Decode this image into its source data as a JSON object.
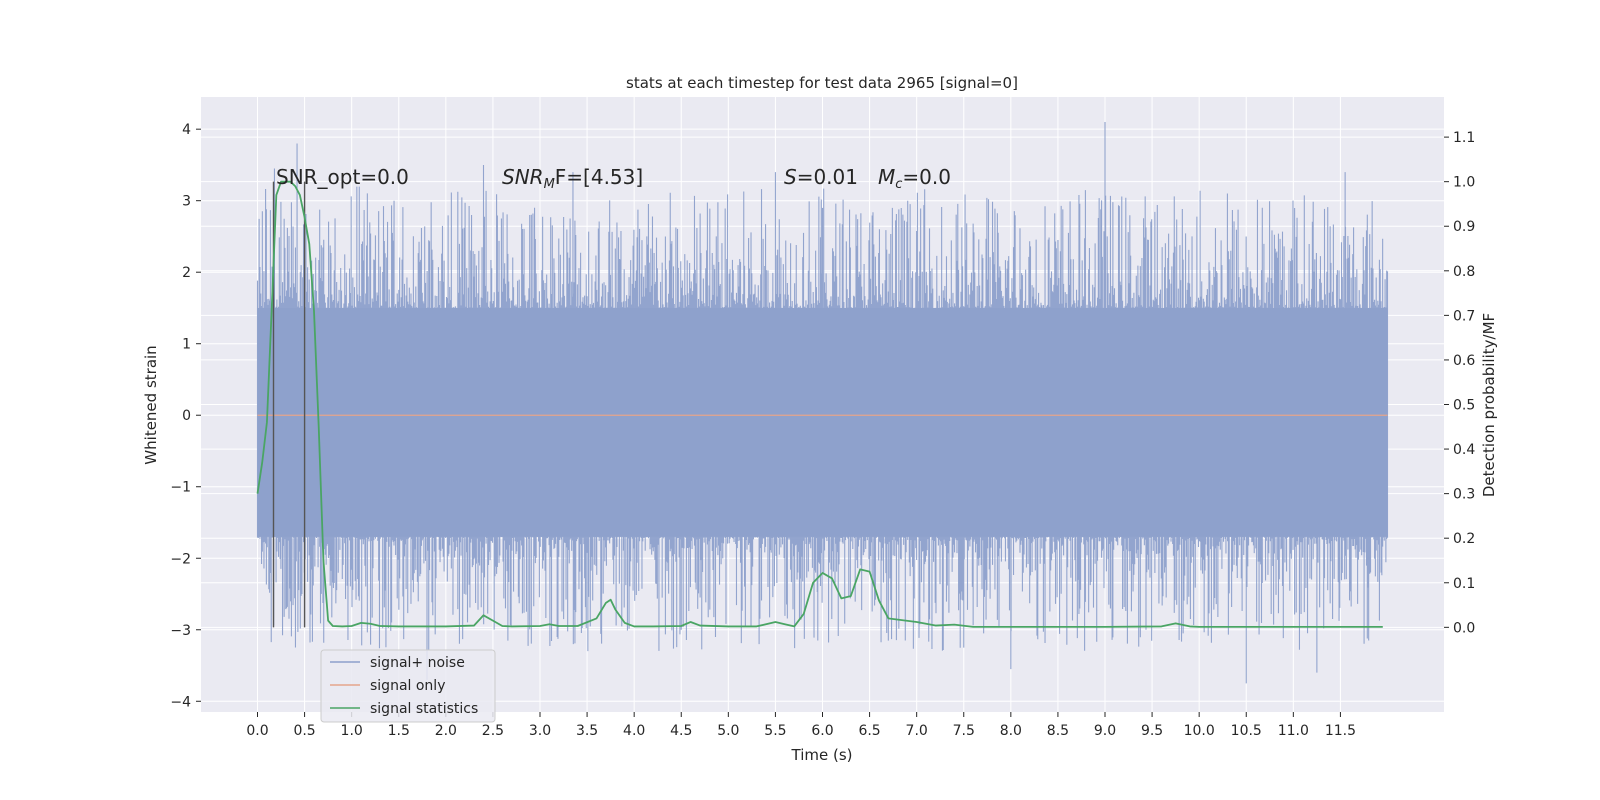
{
  "chart_data": {
    "type": "line",
    "title": "stats at each timestep for test data 2965 [signal=0]",
    "xlabel": "Time (s)",
    "ylabel_left": "Whitened strain",
    "ylabel_right": "Detection probability/MF",
    "xlim": [
      -0.6,
      12.6
    ],
    "ylim_left": [
      -4.15,
      4.45
    ],
    "ylim_right": [
      -0.19,
      1.19
    ],
    "x_ticks": [
      "0.0",
      "0.5",
      "1.0",
      "1.5",
      "2.0",
      "2.5",
      "3.0",
      "3.5",
      "4.0",
      "4.5",
      "5.0",
      "5.5",
      "6.0",
      "6.5",
      "7.0",
      "7.5",
      "8.0",
      "8.5",
      "9.0",
      "9.5",
      "10.0",
      "10.5",
      "11.0",
      "11.5"
    ],
    "y_ticks_left": [
      "4",
      "3",
      "2",
      "1",
      "0",
      "−1",
      "−2",
      "−3",
      "−4"
    ],
    "y_ticks_right": [
      "1.1",
      "1.0",
      "0.9",
      "0.8",
      "0.7",
      "0.6",
      "0.5",
      "0.4",
      "0.3",
      "0.2",
      "0.1",
      "0.0"
    ],
    "grid": true,
    "legend_position": "lower-left",
    "annotations": {
      "snr_opt": "SNR_opt=0.0",
      "snr_mf_main": "SNR",
      "snr_mf_sub": "M",
      "snr_mf_rest": "F=[4.53]",
      "s_label": "S",
      "s_rest": "=0.01",
      "mc_main": "M",
      "mc_sub": "c",
      "mc_rest": "=0.0"
    },
    "vertical_lines": [
      0.17,
      0.5
    ],
    "series": [
      {
        "name": "signal+ noise",
        "color": "#8da0cb",
        "noise": {
          "x_start": 0.0,
          "x_end": 12.0,
          "core_band": [
            -1.7,
            1.5
          ],
          "peaks": [
            {
              "x": 0.18,
              "y": 3.45
            },
            {
              "x": 0.42,
              "y": 3.8
            },
            {
              "x": 1.45,
              "y": 3.0
            },
            {
              "x": 2.4,
              "y": 3.5
            },
            {
              "x": 3.35,
              "y": 3.4
            },
            {
              "x": 5.5,
              "y": 3.4
            },
            {
              "x": 6.0,
              "y": 2.9
            },
            {
              "x": 9.0,
              "y": 4.1
            },
            {
              "x": 10.3,
              "y": 3.1
            },
            {
              "x": 11.55,
              "y": 3.4
            },
            {
              "x": 1.8,
              "y": -3.7
            },
            {
              "x": 5.95,
              "y": -3.15
            },
            {
              "x": 7.5,
              "y": -3.25
            },
            {
              "x": 8.0,
              "y": -3.55
            },
            {
              "x": 10.5,
              "y": -3.75
            },
            {
              "x": 11.25,
              "y": -3.6
            },
            {
              "x": 11.8,
              "y": -3.15
            },
            {
              "x": 4.5,
              "y": -3.0
            }
          ]
        }
      },
      {
        "name": "signal only",
        "color": "#e5a48b",
        "x": [
          0.0,
          12.0
        ],
        "y": [
          0.0,
          0.0
        ]
      },
      {
        "name": "signal statistics",
        "color": "#4aa564",
        "axis": "right",
        "x": [
          0.0,
          0.05,
          0.1,
          0.15,
          0.2,
          0.25,
          0.3,
          0.35,
          0.4,
          0.45,
          0.5,
          0.55,
          0.6,
          0.65,
          0.7,
          0.75,
          0.8,
          0.9,
          1.0,
          1.1,
          1.2,
          1.3,
          1.5,
          2.0,
          2.3,
          2.4,
          2.5,
          2.6,
          2.7,
          3.0,
          3.1,
          3.2,
          3.4,
          3.6,
          3.7,
          3.75,
          3.8,
          3.9,
          4.0,
          4.2,
          4.5,
          4.6,
          4.7,
          5.0,
          5.3,
          5.5,
          5.6,
          5.7,
          5.8,
          5.9,
          6.0,
          6.1,
          6.2,
          6.3,
          6.4,
          6.5,
          6.6,
          6.7,
          7.0,
          7.2,
          7.4,
          7.6,
          8.0,
          9.0,
          9.6,
          9.75,
          9.9,
          10.0,
          11.0,
          11.95
        ],
        "y": [
          0.3,
          0.37,
          0.46,
          0.71,
          0.97,
          1.0,
          1.0,
          1.0,
          0.99,
          0.97,
          0.92,
          0.86,
          0.71,
          0.45,
          0.15,
          0.015,
          0.003,
          0.002,
          0.003,
          0.01,
          0.008,
          0.003,
          0.002,
          0.002,
          0.004,
          0.027,
          0.015,
          0.003,
          0.002,
          0.003,
          0.007,
          0.003,
          0.003,
          0.02,
          0.055,
          0.062,
          0.04,
          0.01,
          0.002,
          0.002,
          0.003,
          0.012,
          0.004,
          0.002,
          0.002,
          0.012,
          0.007,
          0.002,
          0.03,
          0.1,
          0.122,
          0.11,
          0.065,
          0.07,
          0.13,
          0.125,
          0.06,
          0.02,
          0.012,
          0.004,
          0.006,
          0.001,
          0.001,
          0.001,
          0.002,
          0.009,
          0.002,
          0.001,
          0.001,
          0.001
        ]
      }
    ]
  }
}
